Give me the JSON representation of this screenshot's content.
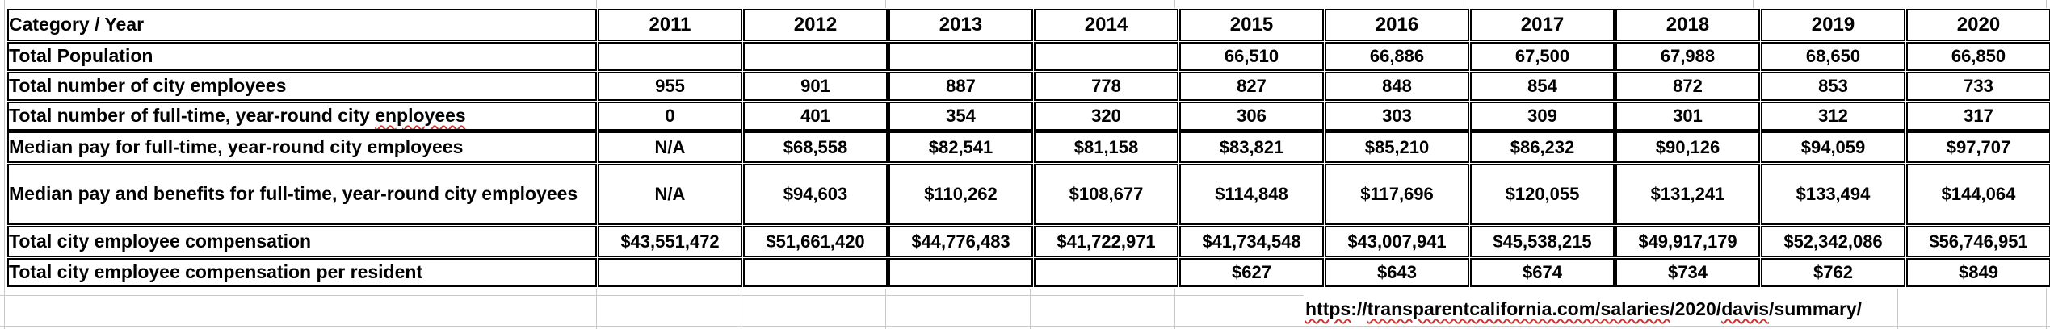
{
  "table": {
    "header": {
      "category_label": "Category / Year",
      "years": [
        "2011",
        "2012",
        "2013",
        "2014",
        "2015",
        "2016",
        "2017",
        "2018",
        "2019",
        "2020"
      ]
    },
    "rows": [
      {
        "label": "Total Population",
        "misspelled": "",
        "values": [
          "",
          "",
          "",
          "",
          "66,510",
          "66,886",
          "67,500",
          "67,988",
          "68,650",
          "66,850"
        ]
      },
      {
        "label": "Total number of city employees",
        "misspelled": "",
        "values": [
          "955",
          "901",
          "887",
          "778",
          "827",
          "848",
          "854",
          "872",
          "853",
          "733"
        ]
      },
      {
        "label": "Total number of full-time, year-round city ",
        "misspelled": "enployees",
        "values": [
          "0",
          "401",
          "354",
          "320",
          "306",
          "303",
          "309",
          "301",
          "312",
          "317"
        ]
      },
      {
        "label": "Median pay for full-time, year-round city employees",
        "misspelled": "",
        "values": [
          "N/A",
          "$68,558",
          "$82,541",
          "$81,158",
          "$83,821",
          "$85,210",
          "$86,232",
          "$90,126",
          "$94,059",
          "$97,707"
        ]
      },
      {
        "label": "Median pay and benefits for full-time, year-round city employees",
        "misspelled": "",
        "values": [
          "N/A",
          "$94,603",
          "$110,262",
          "$108,677",
          "$114,848",
          "$117,696",
          "$120,055",
          "$131,241",
          "$133,494",
          "$144,064"
        ]
      },
      {
        "label": "Total city employee compensation",
        "misspelled": "",
        "values": [
          "$43,551,472",
          "$51,661,420",
          "$44,776,483",
          "$41,722,971",
          "$41,734,548",
          "$43,007,941",
          "$45,538,215",
          "$49,917,179",
          "$52,342,086",
          "$56,746,951"
        ]
      },
      {
        "label": "Total city employee compensation per resident",
        "misspelled": "",
        "values": [
          "",
          "",
          "",
          "",
          "$627",
          "$643",
          "$674",
          "$734",
          "$762",
          "$849"
        ]
      }
    ]
  },
  "footer": {
    "url_segments": [
      {
        "text": "https",
        "squiggle": true
      },
      {
        "text": "://",
        "squiggle": false
      },
      {
        "text": "transparentcalifornia.com/salaries",
        "squiggle": true
      },
      {
        "text": "/2020/",
        "squiggle": false
      },
      {
        "text": "davis",
        "squiggle": true
      },
      {
        "text": "/summary/",
        "squiggle": false
      }
    ]
  },
  "colors": {
    "cell_border": "#000000",
    "shaded_cell": "#e8e8e6",
    "gridline": "#c9c9c9",
    "spellcheck_squiggle": "#cc3333",
    "text": "#000000"
  }
}
